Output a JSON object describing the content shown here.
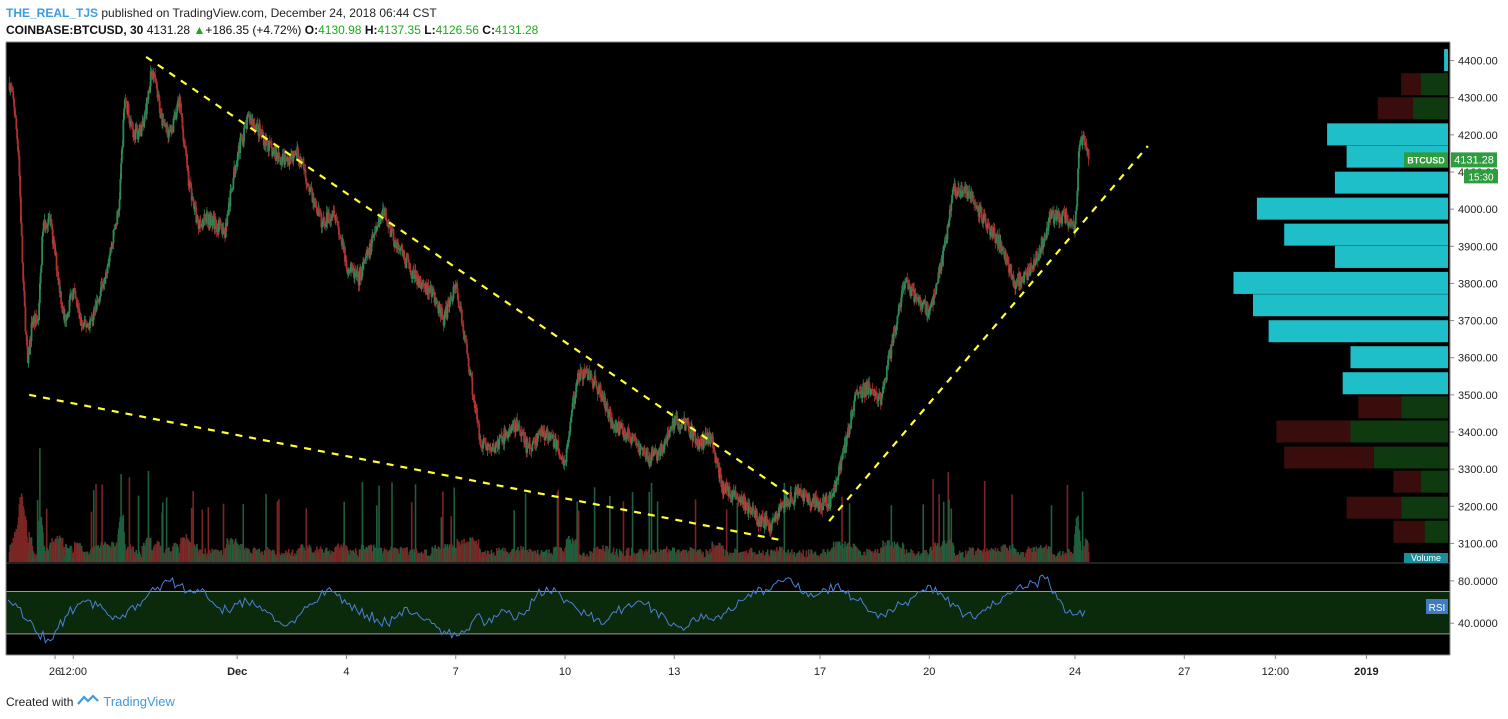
{
  "header": {
    "user": "THE_REAL_TJS",
    "published_text": "published on TradingView.com, December 24, 2018 06:44 CST",
    "symbol": "COINBASE:BTCUSD, 30",
    "last": "4131.28",
    "change": "+186.35 (+4.72%)",
    "o_label": "O:",
    "o_value": "4130.98",
    "h_label": "H:",
    "h_value": "4137.35",
    "l_label": "L:",
    "l_value": "4126.56",
    "c_label": "C:",
    "c_value": "4131.28"
  },
  "footer": {
    "created_with": "Created with",
    "brand": "TradingView"
  },
  "colors": {
    "background": "#000000",
    "up": "#2e8b57",
    "down": "#b03030",
    "trendline": "#ffff33",
    "volume_profile": "#1fbfc9",
    "rsi_line": "#4c7fd6",
    "rsi_band": "#0b2a0b",
    "price_tag": "#2e9d3f",
    "axis_text": "#222222"
  },
  "chart_data": [
    {
      "type": "candlestick",
      "title": "COINBASE:BTCUSD, 30",
      "ylim": [
        3050,
        4450
      ],
      "y_ticks": [
        "4400.00",
        "4300.00",
        "4200.00",
        "4100.00",
        "4000.00",
        "3900.00",
        "3800.00",
        "3700.00",
        "3600.00",
        "3500.00",
        "3400.00",
        "3300.00",
        "3200.00",
        "3100.00"
      ],
      "x_tick_labels": [
        "26",
        "12:00",
        "Dec",
        "4",
        "7",
        "10",
        "13",
        "17",
        "20",
        "24",
        "27",
        "12:00",
        "2019"
      ],
      "last_price_label": "BTCUSD",
      "last_price": "4131.28",
      "countdown": "15:30",
      "volume_label": "Volume",
      "price_path": [
        {
          "t": "Nov 24 18:00",
          "p": 4340
        },
        {
          "t": "Nov 24 21:00",
          "p": 4280
        },
        {
          "t": "Nov 25 00:00",
          "p": 4150
        },
        {
          "t": "Nov 25 03:00",
          "p": 3800
        },
        {
          "t": "Nov 25 06:00",
          "p": 3580
        },
        {
          "t": "Nov 25 09:00",
          "p": 3700
        },
        {
          "t": "Nov 25 13:00",
          "p": 3700
        },
        {
          "t": "Nov 25 16:00",
          "p": 3950
        },
        {
          "t": "Nov 25 20:00",
          "p": 3980
        },
        {
          "t": "Nov 26 00:00",
          "p": 3880
        },
        {
          "t": "Nov 26 06:00",
          "p": 3700
        },
        {
          "t": "Nov 26 12:00",
          "p": 3780
        },
        {
          "t": "Nov 26 18:00",
          "p": 3680
        },
        {
          "t": "Nov 27 00:00",
          "p": 3700
        },
        {
          "t": "Nov 27 06:00",
          "p": 3780
        },
        {
          "t": "Nov 27 12:00",
          "p": 3880
        },
        {
          "t": "Nov 27 18:00",
          "p": 4000
        },
        {
          "t": "Nov 27 22:00",
          "p": 4300
        },
        {
          "t": "Nov 28 04:00",
          "p": 4200
        },
        {
          "t": "Nov 28 10:00",
          "p": 4220
        },
        {
          "t": "Nov 28 16:00",
          "p": 4380
        },
        {
          "t": "Nov 28 22:00",
          "p": 4250
        },
        {
          "t": "Nov 29 04:00",
          "p": 4200
        },
        {
          "t": "Nov 29 10:00",
          "p": 4290
        },
        {
          "t": "Nov 29 16:00",
          "p": 4080
        },
        {
          "t": "Nov 29 22:00",
          "p": 3960
        },
        {
          "t": "Nov 30 04:00",
          "p": 3980
        },
        {
          "t": "Nov 30 10:00",
          "p": 3960
        },
        {
          "t": "Nov 30 16:00",
          "p": 3940
        },
        {
          "t": "Dec 1 00:00",
          "p": 4150
        },
        {
          "t": "Dec 1 08:00",
          "p": 4250
        },
        {
          "t": "Dec 1 16:00",
          "p": 4200
        },
        {
          "t": "Dec 2 00:00",
          "p": 4150
        },
        {
          "t": "Dec 2 08:00",
          "p": 4130
        },
        {
          "t": "Dec 2 16:00",
          "p": 4150
        },
        {
          "t": "Dec 3 00:00",
          "p": 4050
        },
        {
          "t": "Dec 3 08:00",
          "p": 3960
        },
        {
          "t": "Dec 3 16:00",
          "p": 4000
        },
        {
          "t": "Dec 4 00:00",
          "p": 3850
        },
        {
          "t": "Dec 4 08:00",
          "p": 3810
        },
        {
          "t": "Dec 4 16:00",
          "p": 3900
        },
        {
          "t": "Dec 5 00:00",
          "p": 4000
        },
        {
          "t": "Dec 5 08:00",
          "p": 3910
        },
        {
          "t": "Dec 5 16:00",
          "p": 3850
        },
        {
          "t": "Dec 6 00:00",
          "p": 3800
        },
        {
          "t": "Dec 6 08:00",
          "p": 3780
        },
        {
          "t": "Dec 6 16:00",
          "p": 3700
        },
        {
          "t": "Dec 7 00:00",
          "p": 3800
        },
        {
          "t": "Dec 7 08:00",
          "p": 3600
        },
        {
          "t": "Dec 7 16:00",
          "p": 3380
        },
        {
          "t": "Dec 8 00:00",
          "p": 3350
        },
        {
          "t": "Dec 8 08:00",
          "p": 3390
        },
        {
          "t": "Dec 8 16:00",
          "p": 3420
        },
        {
          "t": "Dec 9 00:00",
          "p": 3350
        },
        {
          "t": "Dec 9 08:00",
          "p": 3400
        },
        {
          "t": "Dec 9 16:00",
          "p": 3380
        },
        {
          "t": "Dec 10 00:00",
          "p": 3320
        },
        {
          "t": "Dec 10 08:00",
          "p": 3550
        },
        {
          "t": "Dec 10 16:00",
          "p": 3560
        },
        {
          "t": "Dec 11 00:00",
          "p": 3500
        },
        {
          "t": "Dec 11 08:00",
          "p": 3420
        },
        {
          "t": "Dec 11 16:00",
          "p": 3400
        },
        {
          "t": "Dec 12 00:00",
          "p": 3360
        },
        {
          "t": "Dec 12 08:00",
          "p": 3330
        },
        {
          "t": "Dec 12 16:00",
          "p": 3350
        },
        {
          "t": "Dec 13 00:00",
          "p": 3430
        },
        {
          "t": "Dec 13 08:00",
          "p": 3420
        },
        {
          "t": "Dec 13 16:00",
          "p": 3370
        },
        {
          "t": "Dec 14 00:00",
          "p": 3390
        },
        {
          "t": "Dec 14 08:00",
          "p": 3250
        },
        {
          "t": "Dec 14 16:00",
          "p": 3230
        },
        {
          "t": "Dec 15 00:00",
          "p": 3200
        },
        {
          "t": "Dec 15 08:00",
          "p": 3160
        },
        {
          "t": "Dec 15 16:00",
          "p": 3150
        },
        {
          "t": "Dec 16 00:00",
          "p": 3210
        },
        {
          "t": "Dec 16 08:00",
          "p": 3230
        },
        {
          "t": "Dec 16 16:00",
          "p": 3220
        },
        {
          "t": "Dec 17 00:00",
          "p": 3200
        },
        {
          "t": "Dec 17 08:00",
          "p": 3220
        },
        {
          "t": "Dec 17 16:00",
          "p": 3360
        },
        {
          "t": "Dec 18 00:00",
          "p": 3500
        },
        {
          "t": "Dec 18 08:00",
          "p": 3520
        },
        {
          "t": "Dec 18 16:00",
          "p": 3480
        },
        {
          "t": "Dec 19 00:00",
          "p": 3650
        },
        {
          "t": "Dec 19 08:00",
          "p": 3800
        },
        {
          "t": "Dec 19 16:00",
          "p": 3760
        },
        {
          "t": "Dec 20 00:00",
          "p": 3720
        },
        {
          "t": "Dec 20 08:00",
          "p": 3850
        },
        {
          "t": "Dec 20 16:00",
          "p": 4050
        },
        {
          "t": "Dec 21 00:00",
          "p": 4050
        },
        {
          "t": "Dec 21 08:00",
          "p": 4000
        },
        {
          "t": "Dec 21 16:00",
          "p": 3950
        },
        {
          "t": "Dec 22 00:00",
          "p": 3900
        },
        {
          "t": "Dec 22 08:00",
          "p": 3800
        },
        {
          "t": "Dec 22 16:00",
          "p": 3820
        },
        {
          "t": "Dec 23 00:00",
          "p": 3880
        },
        {
          "t": "Dec 23 08:00",
          "p": 3980
        },
        {
          "t": "Dec 23 16:00",
          "p": 3980
        },
        {
          "t": "Dec 24 00:00",
          "p": 3950
        },
        {
          "t": "Dec 24 03:00",
          "p": 4180
        },
        {
          "t": "Dec 24 06:00",
          "p": 4200
        },
        {
          "t": "Dec 24 09:00",
          "p": 4131
        }
      ],
      "trendlines": [
        {
          "from": {
            "t": "Nov 28 12:00",
            "p": 4410
          },
          "to": {
            "t": "Dec 16 06:00",
            "p": 3225
          }
        },
        {
          "from": {
            "t": "Nov 25 07:00",
            "p": 3500
          },
          "to": {
            "t": "Dec 15 21:00",
            "p": 3110
          }
        },
        {
          "from": {
            "t": "Dec 17 06:00",
            "p": 3160
          },
          "to": {
            "t": "Dec 26 00:00",
            "p": 4170
          }
        }
      ],
      "volume_profile": [
        {
          "price": 4400,
          "up": 0.01,
          "down": 0
        },
        {
          "price": 4335,
          "up": 0.07,
          "down": 0.05
        },
        {
          "price": 4270,
          "up": 0.09,
          "down": 0.09
        },
        {
          "price": 4200,
          "up": 0.31,
          "down": 0
        },
        {
          "price": 4140,
          "up": 0.26,
          "down": 0
        },
        {
          "price": 4070,
          "up": 0.29,
          "down": 0
        },
        {
          "price": 4000,
          "up": 0.49,
          "down": 0
        },
        {
          "price": 3930,
          "up": 0.42,
          "down": 0
        },
        {
          "price": 3870,
          "up": 0.29,
          "down": 0
        },
        {
          "price": 3800,
          "up": 0.55,
          "down": 0
        },
        {
          "price": 3740,
          "up": 0.5,
          "down": 0
        },
        {
          "price": 3670,
          "up": 0.46,
          "down": 0
        },
        {
          "price": 3600,
          "up": 0.25,
          "down": 0
        },
        {
          "price": 3530,
          "up": 0.27,
          "down": 0
        },
        {
          "price": 3465,
          "up": 0.12,
          "down": 0.11
        },
        {
          "price": 3400,
          "up": 0.25,
          "down": 0.19
        },
        {
          "price": 3330,
          "up": 0.19,
          "down": 0.23
        },
        {
          "price": 3265,
          "up": 0.07,
          "down": 0.07
        },
        {
          "price": 3195,
          "up": 0.12,
          "down": 0.14
        },
        {
          "price": 3130,
          "up": 0.06,
          "down": 0.08
        }
      ]
    },
    {
      "type": "line",
      "title": "RSI",
      "ylim": [
        10,
        95
      ],
      "y_ticks": [
        "80.0000",
        "40.0000"
      ],
      "band": [
        30,
        70
      ],
      "values": [
        62,
        55,
        42,
        30,
        25,
        35,
        48,
        58,
        62,
        56,
        48,
        45,
        52,
        58,
        66,
        74,
        80,
        76,
        70,
        72,
        64,
        55,
        52,
        58,
        60,
        55,
        50,
        42,
        38,
        46,
        55,
        60,
        72,
        66,
        58,
        52,
        48,
        44,
        40,
        46,
        55,
        50,
        44,
        36,
        30,
        28,
        34,
        48,
        40,
        46,
        50,
        44,
        52,
        66,
        74,
        70,
        62,
        54,
        48,
        44,
        42,
        50,
        56,
        60,
        58,
        52,
        44,
        38,
        36,
        42,
        48,
        46,
        50,
        55,
        64,
        68,
        72,
        78,
        82,
        74,
        70,
        66,
        72,
        76,
        68,
        62,
        56,
        50,
        46,
        54,
        60,
        66,
        70,
        74,
        62,
        56,
        48,
        44,
        52,
        58,
        66,
        70,
        74,
        78,
        82,
        70,
        50,
        48,
        52
      ]
    }
  ]
}
